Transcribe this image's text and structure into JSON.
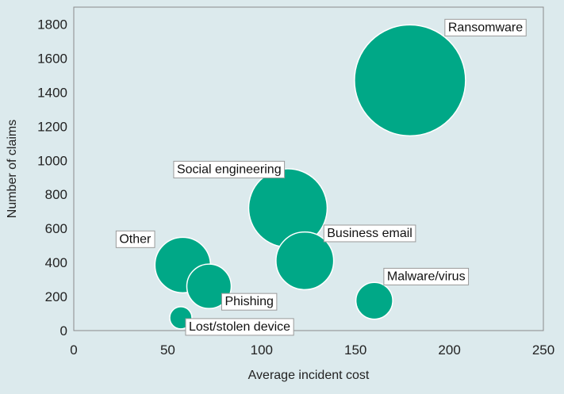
{
  "chart_data": {
    "type": "scatter",
    "xlabel": "Average incident cost",
    "ylabel": "Number of claims",
    "xlim": [
      0,
      250
    ],
    "ylim": [
      0,
      1900
    ],
    "xticks": [
      0,
      50,
      100,
      150,
      200,
      250
    ],
    "yticks": [
      0,
      200,
      400,
      600,
      800,
      1000,
      1200,
      1400,
      1600,
      1800
    ],
    "grid": false,
    "legend": "none",
    "bubble_color": "#00a887",
    "background_color": "#dceaed",
    "points": [
      {
        "label": "Ransomware",
        "x": 179,
        "y": 1470,
        "size": 100
      },
      {
        "label": "Social engineering",
        "x": 114,
        "y": 720,
        "size": 50
      },
      {
        "label": "Business email",
        "x": 123,
        "y": 410,
        "size": 27
      },
      {
        "label": "Other",
        "x": 58,
        "y": 385,
        "size": 25
      },
      {
        "label": "Phishing",
        "x": 72,
        "y": 260,
        "size": 16
      },
      {
        "label": "Malware/virus",
        "x": 160,
        "y": 175,
        "size": 11
      },
      {
        "label": "Lost/stolen device",
        "x": 57,
        "y": 75,
        "size": 4
      }
    ]
  }
}
